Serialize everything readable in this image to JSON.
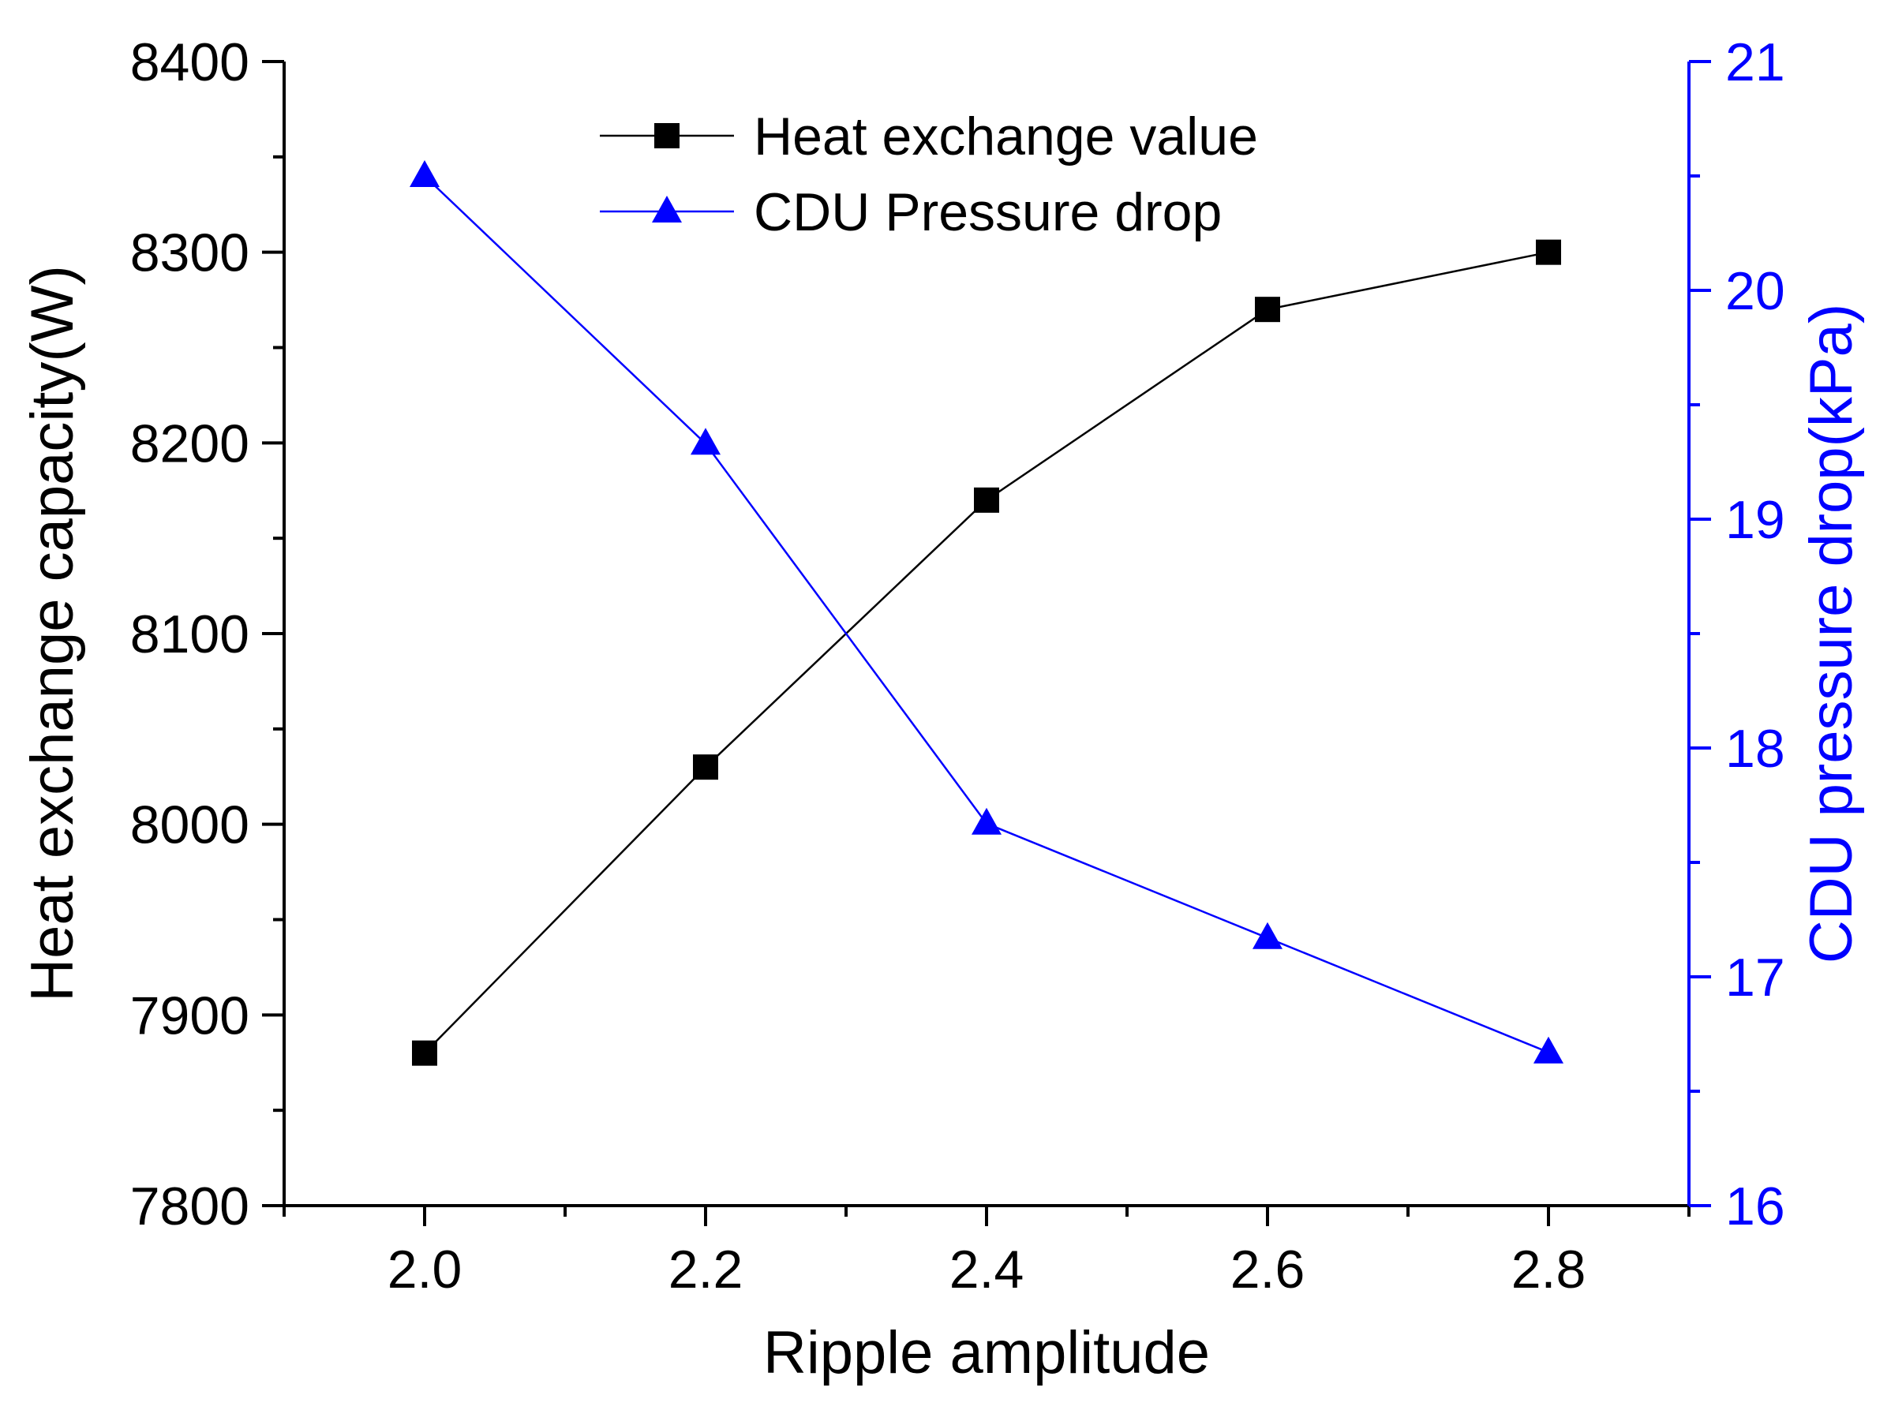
{
  "chart_data": {
    "type": "line",
    "xlabel": "Ripple amplitude",
    "ylabel_left": "Heat exchange  capacity(W)",
    "ylabel_right": "CDU pressure drop(kPa)",
    "xlim": [
      1.9,
      2.9
    ],
    "xticks": [
      "2.0",
      "2.2",
      "2.4",
      "2.6",
      "2.8"
    ],
    "xtick_values": [
      2.0,
      2.2,
      2.4,
      2.6,
      2.8
    ],
    "ylim_left": [
      7800,
      8400
    ],
    "yticks_left": [
      "7800",
      "7900",
      "8000",
      "8100",
      "8200",
      "8300",
      "8400"
    ],
    "ylim_right": [
      16,
      21
    ],
    "yticks_right": [
      "16",
      "17",
      "18",
      "19",
      "20",
      "21"
    ],
    "legend_position": "top-center",
    "series": [
      {
        "name": "Heat exchange value",
        "axis": "left",
        "marker": "square",
        "color": "#000000",
        "x": [
          2.0,
          2.2,
          2.4,
          2.6,
          2.8
        ],
        "values": [
          7880,
          8030,
          8170,
          8270,
          8300
        ]
      },
      {
        "name": "CDU Pressure drop",
        "axis": "right",
        "marker": "triangle",
        "color": "#0000ff",
        "x": [
          2.0,
          2.2,
          2.4,
          2.6,
          2.8
        ],
        "values": [
          20.5,
          19.33,
          17.67,
          17.17,
          16.67
        ]
      }
    ]
  }
}
